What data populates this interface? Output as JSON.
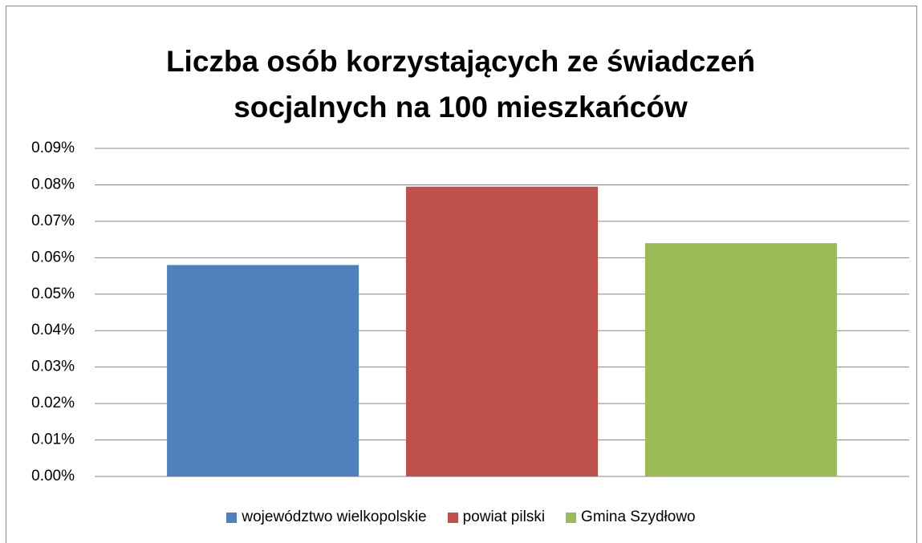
{
  "chart_data": {
    "type": "bar",
    "title": "Liczba osób korzystających ze świadczeń socjalnych na 100 mieszkańców",
    "categories": [
      null
    ],
    "series": [
      {
        "name": "województwo wielkopolskie",
        "color": "#4f81bd",
        "values": [
          0.058
        ]
      },
      {
        "name": "powiat pilski",
        "color": "#c0504d",
        "values": [
          0.0795
        ]
      },
      {
        "name": "Gmina Szydłowo",
        "color": "#9bbb59",
        "values": [
          0.064
        ]
      }
    ],
    "ylim": [
      0,
      0.09
    ],
    "yticks": [
      {
        "value": 0,
        "label": "0.00%"
      },
      {
        "value": 0.01,
        "label": "0.01%"
      },
      {
        "value": 0.02,
        "label": "0.02%"
      },
      {
        "value": 0.03,
        "label": "0.03%"
      },
      {
        "value": 0.04,
        "label": "0.04%"
      },
      {
        "value": 0.05,
        "label": "0.05%"
      },
      {
        "value": 0.06,
        "label": "0.06%"
      },
      {
        "value": 0.07,
        "label": "0.07%"
      },
      {
        "value": 0.08,
        "label": "0.08%"
      },
      {
        "value": 0.09,
        "label": "0.09%"
      }
    ],
    "grid": true,
    "legend": "bottom"
  }
}
